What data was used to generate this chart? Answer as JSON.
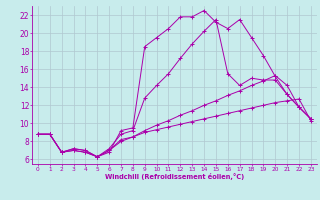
{
  "background_color": "#c8ecec",
  "grid_color": "#b0c8d0",
  "line_color": "#aa00aa",
  "xlabel": "Windchill (Refroidissement éolien,°C)",
  "xlim": [
    -0.5,
    23.5
  ],
  "ylim": [
    5.5,
    23.0
  ],
  "yticks": [
    6,
    8,
    10,
    12,
    14,
    16,
    18,
    20,
    22
  ],
  "xticks": [
    0,
    1,
    2,
    3,
    4,
    5,
    6,
    7,
    8,
    9,
    10,
    11,
    12,
    13,
    14,
    15,
    16,
    17,
    18,
    19,
    20,
    21,
    22,
    23
  ],
  "line1_x": [
    0,
    1,
    2,
    3,
    4,
    5,
    6,
    7,
    8,
    9,
    10,
    11,
    12,
    13,
    14,
    15,
    16,
    17,
    18,
    19,
    20,
    21,
    22,
    23
  ],
  "line1_y": [
    8.8,
    8.8,
    6.8,
    7.2,
    7.0,
    6.3,
    6.8,
    9.2,
    9.5,
    18.5,
    19.5,
    20.5,
    21.8,
    21.8,
    22.5,
    21.2,
    20.5,
    21.5,
    19.5,
    17.5,
    15.2,
    13.2,
    11.8,
    10.5
  ],
  "line2_x": [
    0,
    1,
    2,
    3,
    4,
    5,
    6,
    7,
    8,
    9,
    10,
    11,
    12,
    13,
    14,
    15,
    16,
    17,
    18,
    19,
    20,
    21,
    22,
    23
  ],
  "line2_y": [
    8.8,
    8.8,
    6.8,
    7.2,
    7.0,
    6.3,
    7.2,
    8.8,
    9.2,
    12.8,
    14.2,
    15.5,
    17.2,
    18.8,
    20.2,
    21.5,
    15.5,
    14.2,
    15.0,
    14.8,
    14.8,
    13.2,
    11.8,
    10.5
  ],
  "line3_x": [
    0,
    1,
    2,
    3,
    4,
    5,
    6,
    7,
    8,
    9,
    10,
    11,
    12,
    13,
    14,
    15,
    16,
    17,
    18,
    19,
    20,
    21,
    22,
    23
  ],
  "line3_y": [
    8.8,
    8.8,
    6.8,
    7.0,
    6.8,
    6.3,
    7.0,
    8.2,
    8.5,
    9.0,
    9.3,
    9.6,
    9.9,
    10.2,
    10.5,
    10.8,
    11.1,
    11.4,
    11.7,
    12.0,
    12.3,
    12.5,
    12.7,
    10.3
  ],
  "line4_x": [
    0,
    1,
    2,
    3,
    4,
    5,
    6,
    7,
    8,
    9,
    10,
    11,
    12,
    13,
    14,
    15,
    16,
    17,
    18,
    19,
    20,
    21,
    22,
    23
  ],
  "line4_y": [
    8.8,
    8.8,
    6.8,
    7.0,
    6.8,
    6.3,
    7.0,
    8.0,
    8.5,
    9.2,
    9.8,
    10.3,
    10.9,
    11.4,
    12.0,
    12.5,
    13.1,
    13.6,
    14.2,
    14.7,
    15.3,
    14.2,
    11.8,
    10.5
  ]
}
